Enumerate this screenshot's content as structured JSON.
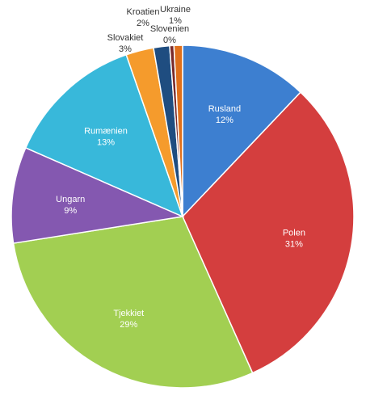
{
  "chart_data": {
    "type": "pie",
    "title": "",
    "legend": "none",
    "slices": [
      {
        "name": "Rusland",
        "label": "Rusland",
        "pct_label": "12%",
        "value": 12.0,
        "color": "#3d7fd0",
        "placement": "inside"
      },
      {
        "name": "Polen",
        "label": "Polen",
        "pct_label": "31%",
        "value": 31.0,
        "color": "#d43e3e",
        "placement": "inside"
      },
      {
        "name": "Tjekkiet",
        "label": "Tjekkiet",
        "pct_label": "29%",
        "value": 29.0,
        "color": "#a2cf52",
        "placement": "inside"
      },
      {
        "name": "Ungarn",
        "label": "Ungarn",
        "pct_label": "9%",
        "value": 9.0,
        "color": "#8458b0",
        "placement": "inside"
      },
      {
        "name": "Rumænien",
        "label": "Rumænien",
        "pct_label": "13%",
        "value": 13.0,
        "color": "#38b8da",
        "placement": "inside"
      },
      {
        "name": "Slovakiet",
        "label": "Slovakiet",
        "pct_label": "3%",
        "value": 2.6,
        "color": "#f59b2c",
        "placement": "outside"
      },
      {
        "name": "Kroatien",
        "label": "Kroatien",
        "pct_label": "2%",
        "value": 1.5,
        "color": "#1f4d80",
        "placement": "outside"
      },
      {
        "name": "Slovenien",
        "label": "Slovenien",
        "pct_label": "0%",
        "value": 0.4,
        "color": "#7a2a2a",
        "placement": "outside"
      },
      {
        "name": "Ukraine",
        "label": "Ukraine",
        "pct_label": "1%",
        "value": 0.8,
        "color": "#e0701c",
        "placement": "outside"
      }
    ]
  }
}
